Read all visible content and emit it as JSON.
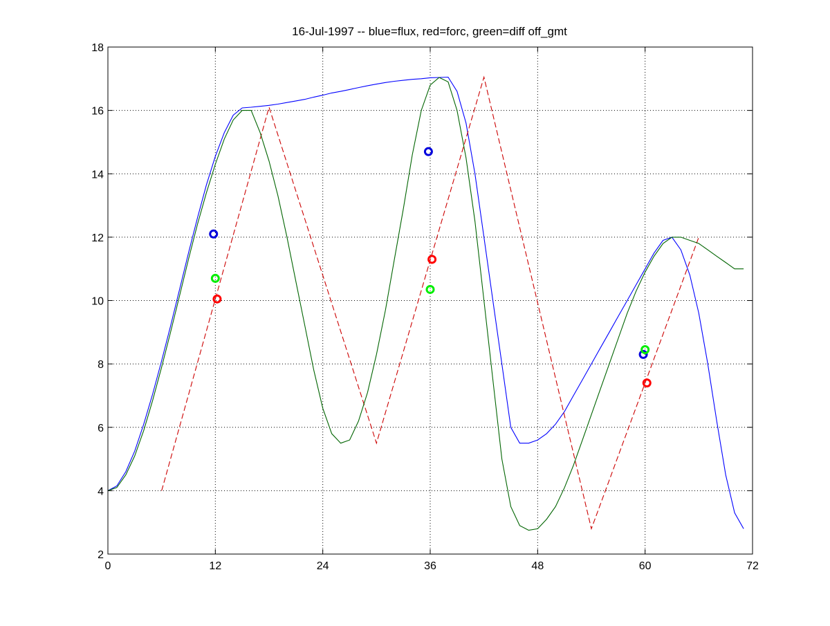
{
  "chart_data": {
    "type": "line",
    "title": "16-Jul-1997 -- blue=flux, red=forc, green=diff off_gmt",
    "xlabel": "",
    "ylabel": "",
    "xlim": [
      0,
      72
    ],
    "ylim": [
      2,
      18
    ],
    "xticks": [
      0,
      12,
      24,
      36,
      48,
      60,
      72
    ],
    "yticks": [
      2,
      4,
      6,
      8,
      10,
      12,
      14,
      16,
      18
    ],
    "grid": true,
    "grid_x": [
      12,
      24,
      36,
      48,
      60
    ],
    "grid_y": [
      4,
      6,
      8,
      10,
      12,
      14,
      16
    ],
    "series": [
      {
        "color": "#0000ff",
        "style": "solid",
        "x": [
          0,
          1,
          2,
          3,
          4,
          5,
          6,
          7,
          8,
          9,
          10,
          11,
          12,
          13,
          14,
          15,
          16,
          17,
          18,
          19,
          20,
          21,
          22,
          23,
          24,
          25,
          26,
          27,
          28,
          29,
          30,
          31,
          32,
          33,
          34,
          35,
          36,
          37,
          38,
          39,
          40,
          41,
          42,
          43,
          44,
          45,
          46,
          47,
          48,
          49,
          50,
          51,
          52,
          53,
          54,
          55,
          56,
          57,
          58,
          59,
          60,
          61,
          62,
          63,
          64,
          65,
          66,
          67,
          68,
          69,
          70,
          71
        ],
        "values": [
          4.0,
          4.15,
          4.6,
          5.25,
          6.1,
          7.05,
          8.1,
          9.2,
          10.35,
          11.5,
          12.6,
          13.65,
          14.55,
          15.3,
          15.85,
          16.08,
          16.1,
          16.13,
          16.16,
          16.2,
          16.25,
          16.3,
          16.35,
          16.42,
          16.48,
          16.55,
          16.6,
          16.66,
          16.72,
          16.78,
          16.83,
          16.88,
          16.92,
          16.95,
          16.98,
          17.0,
          17.03,
          17.04,
          17.05,
          16.6,
          15.6,
          14.0,
          12.0,
          10.0,
          8.0,
          6.0,
          5.5,
          5.5,
          5.6,
          5.8,
          6.1,
          6.5,
          7.0,
          7.5,
          8.0,
          8.5,
          9.0,
          9.5,
          10.0,
          10.5,
          11.0,
          11.5,
          11.9,
          12.0,
          11.6,
          10.8,
          9.6,
          8.0,
          6.2,
          4.5,
          3.3,
          2.8
        ]
      },
      {
        "color": "#cc0000",
        "style": "dashed",
        "x": [
          6,
          18,
          30,
          42,
          54,
          66
        ],
        "values": [
          4.0,
          16.1,
          5.5,
          17.05,
          2.8,
          12.0
        ]
      },
      {
        "color": "#006400",
        "style": "solid",
        "x": [
          0,
          1,
          2,
          3,
          4,
          5,
          6,
          7,
          8,
          9,
          10,
          11,
          12,
          13,
          14,
          15,
          16,
          17,
          18,
          19,
          20,
          21,
          22,
          23,
          24,
          25,
          26,
          27,
          28,
          29,
          30,
          31,
          32,
          33,
          34,
          35,
          36,
          37,
          38,
          39,
          40,
          41,
          42,
          43,
          44,
          45,
          46,
          47,
          48,
          49,
          50,
          51,
          52,
          53,
          54,
          55,
          56,
          57,
          58,
          59,
          60,
          61,
          62,
          63,
          64,
          65,
          66,
          67,
          68,
          69,
          70,
          71
        ],
        "values": [
          4.0,
          4.1,
          4.5,
          5.1,
          5.9,
          6.85,
          7.9,
          9.0,
          10.15,
          11.3,
          12.4,
          13.4,
          14.3,
          15.1,
          15.7,
          16.0,
          16.0,
          15.3,
          14.4,
          13.3,
          12.0,
          10.6,
          9.2,
          7.8,
          6.6,
          5.8,
          5.5,
          5.6,
          6.2,
          7.1,
          8.3,
          9.7,
          11.3,
          12.9,
          14.6,
          16.0,
          16.8,
          17.04,
          16.9,
          16.0,
          14.5,
          12.5,
          10.0,
          7.5,
          5.0,
          3.5,
          2.9,
          2.75,
          2.8,
          3.1,
          3.5,
          4.1,
          4.8,
          5.6,
          6.4,
          7.2,
          8.0,
          8.8,
          9.6,
          10.3,
          10.9,
          11.4,
          11.8,
          12.0,
          12.0,
          11.9,
          11.8,
          11.6,
          11.4,
          11.2,
          11.0,
          11.0
        ]
      }
    ],
    "markers": [
      {
        "x": 11.8,
        "y": 12.1,
        "color": "#0000dd"
      },
      {
        "x": 35.8,
        "y": 14.7,
        "color": "#0000dd"
      },
      {
        "x": 59.8,
        "y": 8.3,
        "color": "#0000dd"
      },
      {
        "x": 12.2,
        "y": 10.05,
        "color": "#ff0000"
      },
      {
        "x": 36.2,
        "y": 11.3,
        "color": "#ff0000"
      },
      {
        "x": 60.2,
        "y": 7.4,
        "color": "#ff0000"
      },
      {
        "x": 12.0,
        "y": 10.7,
        "color": "#00ee00"
      },
      {
        "x": 36.0,
        "y": 10.35,
        "color": "#00ee00"
      },
      {
        "x": 60.0,
        "y": 8.45,
        "color": "#00ee00"
      }
    ]
  }
}
